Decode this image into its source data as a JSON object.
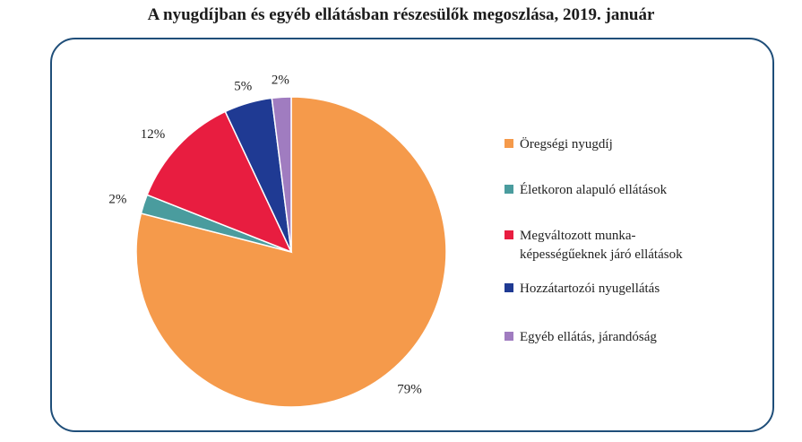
{
  "chart_data": {
    "type": "pie",
    "title": "A nyugdíjban és egyéb ellátásban részesülők megoszlása, 2019. január",
    "slices": [
      {
        "label": [
          "Öregségi nyugdíj"
        ],
        "value": 79,
        "value_label": "79%",
        "color": "#f59a4b"
      },
      {
        "label": [
          "Életkoron alapuló ellátások"
        ],
        "value": 2,
        "value_label": "2%",
        "color": "#4a9c9e"
      },
      {
        "label": [
          "Megváltozott munka-",
          "képességűeknek járó ellátások"
        ],
        "value": 12,
        "value_label": "12%",
        "color": "#e81d40"
      },
      {
        "label": [
          "Hozzátartozói nyugellátás"
        ],
        "value": 5,
        "value_label": "5%",
        "color": "#1f3a93"
      },
      {
        "label": [
          "Egyéb ellátás, járandóság"
        ],
        "value": 2,
        "value_label": "2%",
        "color": "#a07cc0"
      }
    ],
    "legend_position": "right"
  }
}
